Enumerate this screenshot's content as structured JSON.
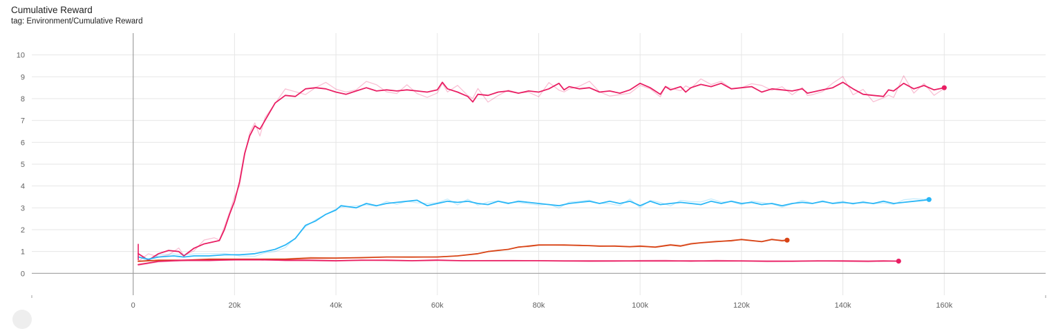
{
  "card": {
    "title": "Cumulative Reward",
    "tag": "tag: Environment/Cumulative Reward"
  },
  "chart_data": {
    "type": "line",
    "title": "Cumulative Reward",
    "subtitle": "tag: Environment/Cumulative Reward",
    "xlabel": "",
    "ylabel": "",
    "xlim": [
      -20000,
      180000
    ],
    "ylim": [
      -1,
      11
    ],
    "x_ticks": [
      0,
      20000,
      40000,
      60000,
      80000,
      100000,
      120000,
      140000,
      160000
    ],
    "x_tick_labels": [
      "0",
      "20k",
      "40k",
      "60k",
      "80k",
      "100k",
      "120k",
      "140k",
      "160k"
    ],
    "y_ticks": [
      0,
      1,
      2,
      3,
      4,
      5,
      6,
      7,
      8,
      9,
      10
    ],
    "y_tick_labels": [
      "0",
      "1",
      "2",
      "3",
      "4",
      "5",
      "6",
      "7",
      "8",
      "9",
      "10"
    ],
    "grid": true,
    "legend": "none",
    "series": [
      {
        "color": "#e91e63",
        "points": [
          [
            1000,
            0.9
          ],
          [
            3000,
            0.6
          ],
          [
            5000,
            0.9
          ],
          [
            7000,
            1.05
          ],
          [
            9000,
            1.0
          ],
          [
            10000,
            0.8
          ],
          [
            12000,
            1.15
          ],
          [
            14000,
            1.35
          ],
          [
            16000,
            1.45
          ],
          [
            17000,
            1.5
          ],
          [
            18000,
            2.0
          ],
          [
            19000,
            2.7
          ],
          [
            20000,
            3.3
          ],
          [
            21000,
            4.2
          ],
          [
            22000,
            5.5
          ],
          [
            23000,
            6.3
          ],
          [
            24000,
            6.75
          ],
          [
            25000,
            6.6
          ],
          [
            26000,
            7.0
          ],
          [
            28000,
            7.8
          ],
          [
            30000,
            8.15
          ],
          [
            32000,
            8.1
          ],
          [
            34000,
            8.45
          ],
          [
            36000,
            8.5
          ],
          [
            38000,
            8.45
          ],
          [
            40000,
            8.3
          ],
          [
            42000,
            8.2
          ],
          [
            44000,
            8.35
          ],
          [
            46000,
            8.5
          ],
          [
            48000,
            8.35
          ],
          [
            50000,
            8.4
          ],
          [
            52000,
            8.35
          ],
          [
            54000,
            8.4
          ],
          [
            56000,
            8.35
          ],
          [
            58000,
            8.3
          ],
          [
            60000,
            8.4
          ],
          [
            61000,
            8.75
          ],
          [
            62000,
            8.45
          ],
          [
            64000,
            8.3
          ],
          [
            66000,
            8.1
          ],
          [
            67000,
            7.85
          ],
          [
            68000,
            8.2
          ],
          [
            70000,
            8.15
          ],
          [
            72000,
            8.3
          ],
          [
            74000,
            8.35
          ],
          [
            76000,
            8.25
          ],
          [
            78000,
            8.35
          ],
          [
            80000,
            8.3
          ],
          [
            82000,
            8.45
          ],
          [
            84000,
            8.7
          ],
          [
            85000,
            8.4
          ],
          [
            86000,
            8.55
          ],
          [
            88000,
            8.45
          ],
          [
            90000,
            8.5
          ],
          [
            92000,
            8.3
          ],
          [
            94000,
            8.35
          ],
          [
            96000,
            8.25
          ],
          [
            98000,
            8.4
          ],
          [
            100000,
            8.7
          ],
          [
            102000,
            8.5
          ],
          [
            104000,
            8.2
          ],
          [
            105000,
            8.55
          ],
          [
            106000,
            8.4
          ],
          [
            108000,
            8.55
          ],
          [
            109000,
            8.3
          ],
          [
            110000,
            8.5
          ],
          [
            112000,
            8.65
          ],
          [
            114000,
            8.55
          ],
          [
            116000,
            8.7
          ],
          [
            118000,
            8.45
          ],
          [
            120000,
            8.5
          ],
          [
            122000,
            8.55
          ],
          [
            124000,
            8.3
          ],
          [
            126000,
            8.45
          ],
          [
            128000,
            8.4
          ],
          [
            130000,
            8.35
          ],
          [
            132000,
            8.45
          ],
          [
            133000,
            8.25
          ],
          [
            134000,
            8.3
          ],
          [
            136000,
            8.4
          ],
          [
            138000,
            8.5
          ],
          [
            140000,
            8.75
          ],
          [
            142000,
            8.45
          ],
          [
            144000,
            8.2
          ],
          [
            146000,
            8.15
          ],
          [
            148000,
            8.1
          ],
          [
            149000,
            8.4
          ],
          [
            150000,
            8.35
          ],
          [
            152000,
            8.7
          ],
          [
            154000,
            8.45
          ],
          [
            156000,
            8.6
          ],
          [
            158000,
            8.4
          ],
          [
            160000,
            8.5
          ]
        ]
      },
      {
        "color": "#29b6f6",
        "points": [
          [
            1000,
            0.75
          ],
          [
            3000,
            0.65
          ],
          [
            5000,
            0.75
          ],
          [
            8000,
            0.8
          ],
          [
            10000,
            0.75
          ],
          [
            12000,
            0.8
          ],
          [
            15000,
            0.8
          ],
          [
            18000,
            0.85
          ],
          [
            21000,
            0.85
          ],
          [
            24000,
            0.9
          ],
          [
            26000,
            1.0
          ],
          [
            28000,
            1.1
          ],
          [
            30000,
            1.3
          ],
          [
            32000,
            1.6
          ],
          [
            34000,
            2.2
          ],
          [
            36000,
            2.4
          ],
          [
            38000,
            2.7
          ],
          [
            40000,
            2.9
          ],
          [
            41000,
            3.1
          ],
          [
            44000,
            3.0
          ],
          [
            46000,
            3.2
          ],
          [
            48000,
            3.1
          ],
          [
            50000,
            3.2
          ],
          [
            52000,
            3.25
          ],
          [
            54000,
            3.3
          ],
          [
            56000,
            3.35
          ],
          [
            58000,
            3.1
          ],
          [
            60000,
            3.2
          ],
          [
            62000,
            3.3
          ],
          [
            64000,
            3.25
          ],
          [
            66000,
            3.3
          ],
          [
            68000,
            3.2
          ],
          [
            70000,
            3.15
          ],
          [
            72000,
            3.3
          ],
          [
            74000,
            3.2
          ],
          [
            76000,
            3.3
          ],
          [
            78000,
            3.25
          ],
          [
            80000,
            3.2
          ],
          [
            82000,
            3.15
          ],
          [
            84000,
            3.1
          ],
          [
            86000,
            3.2
          ],
          [
            88000,
            3.25
          ],
          [
            90000,
            3.3
          ],
          [
            92000,
            3.2
          ],
          [
            94000,
            3.3
          ],
          [
            96000,
            3.2
          ],
          [
            98000,
            3.3
          ],
          [
            100000,
            3.1
          ],
          [
            102000,
            3.3
          ],
          [
            104000,
            3.15
          ],
          [
            106000,
            3.2
          ],
          [
            108000,
            3.25
          ],
          [
            110000,
            3.2
          ],
          [
            112000,
            3.15
          ],
          [
            114000,
            3.3
          ],
          [
            116000,
            3.2
          ],
          [
            118000,
            3.3
          ],
          [
            120000,
            3.2
          ],
          [
            122000,
            3.25
          ],
          [
            124000,
            3.15
          ],
          [
            126000,
            3.2
          ],
          [
            128000,
            3.1
          ],
          [
            130000,
            3.2
          ],
          [
            132000,
            3.25
          ],
          [
            134000,
            3.2
          ],
          [
            136000,
            3.3
          ],
          [
            138000,
            3.2
          ],
          [
            140000,
            3.25
          ],
          [
            142000,
            3.2
          ],
          [
            144000,
            3.25
          ],
          [
            146000,
            3.2
          ],
          [
            148000,
            3.3
          ],
          [
            150000,
            3.2
          ],
          [
            152000,
            3.25
          ],
          [
            154000,
            3.3
          ],
          [
            156000,
            3.35
          ],
          [
            157000,
            3.38
          ]
        ]
      },
      {
        "color": "#d84315",
        "points": [
          [
            1000,
            0.55
          ],
          [
            5000,
            0.6
          ],
          [
            10000,
            0.6
          ],
          [
            15000,
            0.65
          ],
          [
            20000,
            0.65
          ],
          [
            25000,
            0.65
          ],
          [
            30000,
            0.65
          ],
          [
            35000,
            0.7
          ],
          [
            40000,
            0.7
          ],
          [
            45000,
            0.72
          ],
          [
            50000,
            0.75
          ],
          [
            55000,
            0.75
          ],
          [
            60000,
            0.75
          ],
          [
            64000,
            0.8
          ],
          [
            68000,
            0.9
          ],
          [
            70000,
            1.0
          ],
          [
            72000,
            1.05
          ],
          [
            74000,
            1.1
          ],
          [
            76000,
            1.2
          ],
          [
            78000,
            1.25
          ],
          [
            80000,
            1.3
          ],
          [
            82000,
            1.3
          ],
          [
            85000,
            1.3
          ],
          [
            88000,
            1.28
          ],
          [
            90000,
            1.27
          ],
          [
            92000,
            1.25
          ],
          [
            95000,
            1.25
          ],
          [
            98000,
            1.22
          ],
          [
            100000,
            1.25
          ],
          [
            103000,
            1.2
          ],
          [
            106000,
            1.3
          ],
          [
            108000,
            1.25
          ],
          [
            110000,
            1.35
          ],
          [
            112000,
            1.4
          ],
          [
            115000,
            1.45
          ],
          [
            118000,
            1.5
          ],
          [
            120000,
            1.55
          ],
          [
            122000,
            1.5
          ],
          [
            124000,
            1.45
          ],
          [
            126000,
            1.55
          ],
          [
            128000,
            1.5
          ],
          [
            129000,
            1.52
          ]
        ]
      },
      {
        "color": "#e91e63",
        "points": [
          [
            1000,
            0.4
          ],
          [
            5000,
            0.55
          ],
          [
            10000,
            0.6
          ],
          [
            15000,
            0.6
          ],
          [
            20000,
            0.62
          ],
          [
            25000,
            0.62
          ],
          [
            30000,
            0.6
          ],
          [
            35000,
            0.6
          ],
          [
            40000,
            0.58
          ],
          [
            45000,
            0.6
          ],
          [
            50000,
            0.6
          ],
          [
            55000,
            0.58
          ],
          [
            60000,
            0.6
          ],
          [
            65000,
            0.58
          ],
          [
            70000,
            0.58
          ],
          [
            75000,
            0.58
          ],
          [
            80000,
            0.58
          ],
          [
            85000,
            0.57
          ],
          [
            90000,
            0.57
          ],
          [
            95000,
            0.57
          ],
          [
            100000,
            0.57
          ],
          [
            105000,
            0.57
          ],
          [
            110000,
            0.57
          ],
          [
            115000,
            0.57
          ],
          [
            120000,
            0.57
          ],
          [
            125000,
            0.56
          ],
          [
            130000,
            0.56
          ],
          [
            135000,
            0.57
          ],
          [
            140000,
            0.57
          ],
          [
            145000,
            0.56
          ],
          [
            148000,
            0.57
          ],
          [
            151000,
            0.56
          ]
        ]
      }
    ]
  }
}
